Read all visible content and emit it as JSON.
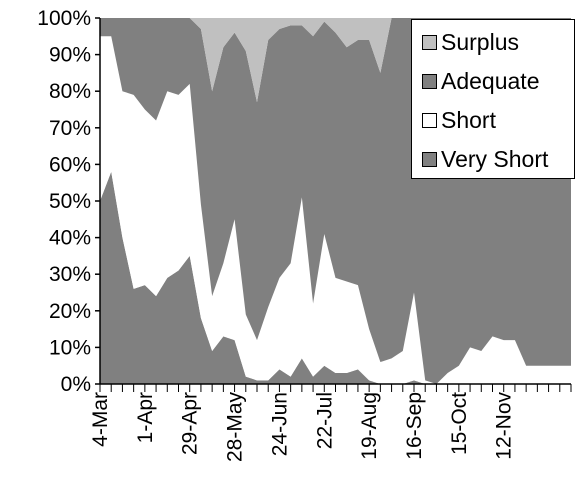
{
  "chart_data": {
    "type": "area",
    "stacked": "percent",
    "x_ticks": [
      "4-Mar",
      "1-Apr",
      "29-Apr",
      "28-May",
      "24-Jun",
      "22-Jul",
      "19-Aug",
      "16-Sep",
      "15-Oct",
      "12-Nov"
    ],
    "y_ticks": [
      "0%",
      "10%",
      "20%",
      "30%",
      "40%",
      "50%",
      "60%",
      "70%",
      "80%",
      "90%",
      "100%"
    ],
    "ylim": [
      0,
      100
    ],
    "legend_position": "top-right",
    "series": [
      {
        "name": "Very Short",
        "color": "#808080",
        "values": [
          50,
          58,
          40,
          26,
          27,
          24,
          29,
          31,
          35,
          18,
          9,
          13,
          12,
          2,
          1,
          1,
          4,
          2,
          7,
          2,
          5,
          3,
          3,
          4,
          1,
          0,
          0,
          0,
          1,
          0,
          0,
          0,
          0,
          0,
          0,
          0,
          0,
          0,
          0,
          0,
          0,
          0,
          0
        ]
      },
      {
        "name": "Short",
        "color": "#ffffff",
        "values": [
          45,
          37,
          40,
          53,
          48,
          48,
          51,
          48,
          47,
          31,
          15,
          20,
          33,
          17,
          11,
          20,
          25,
          31,
          44,
          20,
          36,
          26,
          25,
          23,
          14,
          6,
          7,
          9,
          24,
          1,
          0,
          3,
          5,
          10,
          9,
          13,
          12,
          12,
          5,
          5,
          5,
          5,
          5
        ]
      },
      {
        "name": "Adequate",
        "color": "#808080",
        "values": [
          5,
          5,
          20,
          21,
          25,
          28,
          20,
          21,
          18,
          48,
          56,
          59,
          51,
          72,
          65,
          73,
          68,
          65,
          47,
          73,
          58,
          67,
          64,
          67,
          79,
          79,
          93,
          91,
          75,
          99,
          100,
          97,
          95,
          90,
          91,
          87,
          88,
          88,
          95,
          95,
          95,
          95,
          95
        ]
      },
      {
        "name": "Surplus",
        "color": "#c0c0c0",
        "values": [
          0,
          0,
          0,
          0,
          0,
          0,
          0,
          0,
          0,
          3,
          20,
          8,
          4,
          9,
          23,
          6,
          3,
          2,
          2,
          5,
          1,
          4,
          8,
          6,
          6,
          15,
          0,
          0,
          0,
          0,
          0,
          0,
          0,
          0,
          0,
          0,
          0,
          0,
          0,
          0,
          0,
          0,
          0
        ]
      }
    ],
    "legend": [
      "Surplus",
      "Adequate",
      "Short",
      "Very Short"
    ]
  }
}
